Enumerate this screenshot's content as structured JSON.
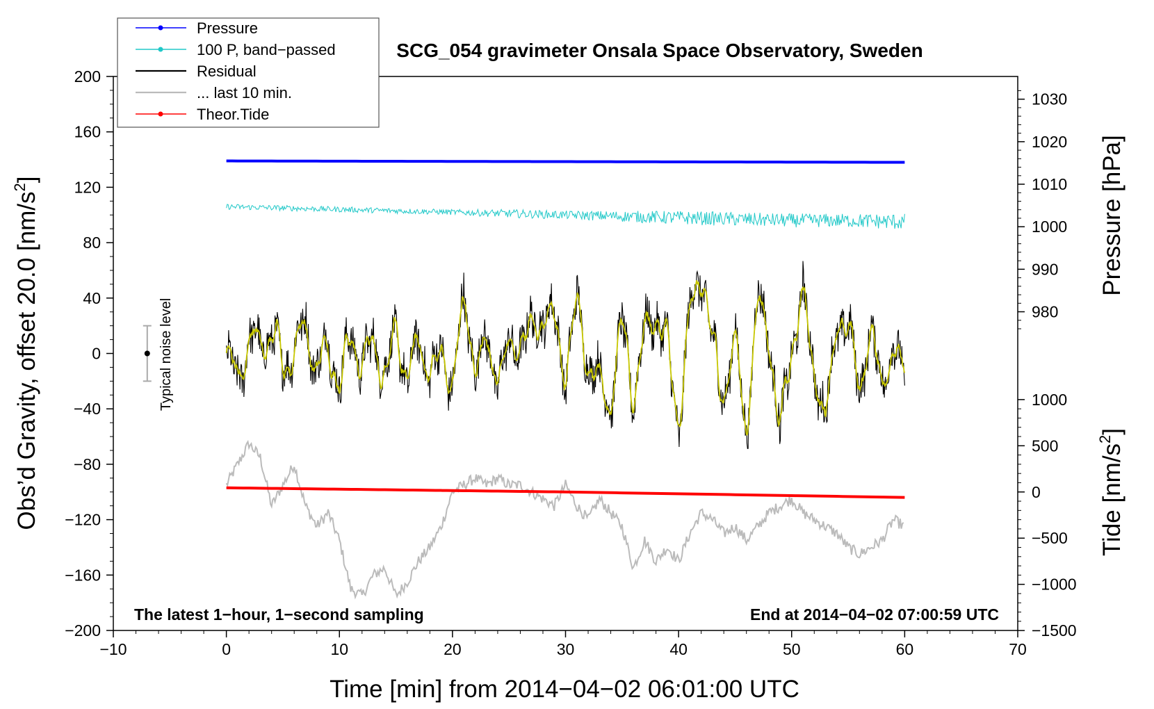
{
  "chart_data": {
    "type": "line",
    "title": "SCG_054 gravimeter Onsala Space Observatory, Sweden",
    "xlabel": "Time [min] from 2014−04−02 06:01:00 UTC",
    "ylabel_left": "Obs’d Gravity, offset 20.0 [nm/s²]",
    "ylabel_left_main": "Obs’d Gravity, offset 20.0 [nm/s",
    "ylabel_left_sup": "2",
    "ylabel_left_end": "]",
    "ylabel_right_pressure": "Pressure [hPa]",
    "ylabel_right_tide": "Tide [nm/s²]",
    "ylabel_right_tide_main": "Tide [nm/s",
    "ylabel_right_tide_sup": "2",
    "ylabel_right_tide_end": "]",
    "xlim": [
      -10,
      70
    ],
    "ylim_left": [
      -200,
      200
    ],
    "x_ticks": [
      "−10",
      "0",
      "10",
      "20",
      "30",
      "40",
      "50",
      "60",
      "70"
    ],
    "x_tick_values": [
      -10,
      0,
      10,
      20,
      30,
      40,
      50,
      60,
      70
    ],
    "y_ticks_left": [
      "200",
      "160",
      "120",
      "80",
      "40",
      "0",
      "−40",
      "−80",
      "−120",
      "−160",
      "−200"
    ],
    "y_tick_values_left": [
      200,
      160,
      120,
      80,
      40,
      0,
      -40,
      -80,
      -120,
      -160,
      -200
    ],
    "pressure_axis": {
      "ticks": [
        "1030",
        "1020",
        "1010",
        "1000",
        "990",
        "980"
      ],
      "tick_values": [
        1030,
        1020,
        1010,
        1000,
        990,
        980
      ],
      "left_units_at_1030": 183.6,
      "left_units_per_hpa": 3.07
    },
    "tide_axis": {
      "ticks": [
        "1000",
        "500",
        "0",
        "−500",
        "−1000",
        "−1500"
      ],
      "tick_values": [
        1000,
        500,
        0,
        -500,
        -1000,
        -1500
      ],
      "left_units_at_0": -100,
      "left_units_per_unit": 0.0667
    },
    "annotations": {
      "bottom_left": "The latest 1−hour, 1−second sampling",
      "bottom_right": "End at 2014−04−02 07:00:59 UTC"
    },
    "noise_indicator": {
      "label": "Typical noise level",
      "x": -7,
      "center": 0,
      "half_range": 20
    },
    "legend": [
      {
        "label": "Pressure",
        "color": "#0000ff",
        "marker": true
      },
      {
        "label": "100 P, band−passed",
        "color": "#20c8c8",
        "marker": true
      },
      {
        "label": "Residual",
        "color": "#000000",
        "marker": false
      },
      {
        "label": "... last 10 min.",
        "color": "#bbbbbb",
        "marker": false
      },
      {
        "label": "Theor.Tide",
        "color": "#ff0000",
        "marker": true
      }
    ],
    "series": [
      {
        "name": "Pressure",
        "color": "#0000ff",
        "axis": "left_units",
        "x": [
          0,
          30,
          60
        ],
        "values": [
          139,
          138.5,
          138
        ]
      },
      {
        "name": "100 P, band−passed",
        "color": "#20c8c8",
        "axis": "left_units",
        "x": [
          0,
          5,
          10,
          15,
          20,
          25,
          30,
          35,
          40,
          45,
          50,
          55,
          60
        ],
        "values": [
          106,
          105,
          104,
          103,
          102,
          101,
          100,
          99,
          98,
          97,
          96,
          96,
          95
        ],
        "noise_amplitude": [
          2,
          2,
          2,
          2,
          2,
          3,
          3,
          4,
          5,
          5,
          5,
          5,
          6
        ]
      },
      {
        "name": "Residual",
        "color": "#000000",
        "axis": "left_units",
        "x": [
          0,
          1,
          2,
          3,
          4,
          5,
          6,
          7,
          8,
          9,
          10,
          11,
          12,
          13,
          14,
          15,
          16,
          17,
          18,
          19,
          20,
          21,
          22,
          23,
          24,
          25,
          26,
          27,
          28,
          29,
          30,
          31,
          32,
          33,
          34,
          35,
          36,
          37,
          38,
          39,
          40,
          41,
          42,
          43,
          44,
          45,
          46,
          47,
          48,
          49,
          50,
          51,
          52,
          53,
          54,
          55,
          56,
          57,
          58,
          59,
          60
        ],
        "values": [
          -5,
          -20,
          10,
          5,
          15,
          -10,
          5,
          20,
          -10,
          5,
          -20,
          10,
          -5,
          5,
          -10,
          10,
          -15,
          5,
          -10,
          -5,
          -20,
          35,
          -5,
          5,
          -15,
          0,
          10,
          15,
          30,
          25,
          -15,
          35,
          -5,
          -20,
          -35,
          20,
          -30,
          15,
          30,
          5,
          -55,
          30,
          60,
          5,
          -30,
          10,
          -55,
          40,
          15,
          -60,
          5,
          40,
          -10,
          -50,
          25,
          15,
          -20,
          10,
          -15,
          0,
          -15
        ],
        "noise_amplitude": 14
      },
      {
        "name": "Smoothed residual",
        "color": "#c8c800",
        "axis": "left_units",
        "follows": "Residual"
      },
      {
        "name": "... last 10 min.",
        "color": "#bbbbbb",
        "axis": "left_units",
        "x": [
          0,
          1,
          2,
          3,
          4,
          5,
          6,
          7,
          8,
          9,
          10,
          11,
          12,
          13,
          14,
          15,
          16,
          17,
          18,
          19,
          20,
          21,
          22,
          23,
          24,
          25,
          26,
          27,
          28,
          29,
          30,
          31,
          32,
          33,
          34,
          35,
          36,
          37,
          38,
          39,
          40,
          41,
          42,
          43,
          44,
          45,
          46,
          47,
          48,
          49,
          50,
          51,
          52,
          53,
          54,
          55,
          56,
          57,
          58,
          59,
          60
        ],
        "values": [
          -95,
          -80,
          -65,
          -75,
          -110,
          -95,
          -80,
          -110,
          -125,
          -115,
          -135,
          -170,
          -175,
          -160,
          -155,
          -175,
          -165,
          -150,
          -140,
          -125,
          -100,
          -95,
          -90,
          -95,
          -90,
          -95,
          -95,
          -100,
          -105,
          -110,
          -95,
          -110,
          -120,
          -105,
          -115,
          -125,
          -155,
          -135,
          -150,
          -140,
          -150,
          -130,
          -115,
          -120,
          -130,
          -125,
          -135,
          -125,
          -115,
          -110,
          -105,
          -115,
          -120,
          -125,
          -130,
          -140,
          -145,
          -140,
          -135,
          -120,
          -125
        ]
      },
      {
        "name": "Theor.Tide",
        "color": "#ff0000",
        "axis": "left_units",
        "x": [
          0,
          30,
          60.3
        ],
        "values": [
          -97,
          -100,
          -104
        ]
      }
    ]
  }
}
